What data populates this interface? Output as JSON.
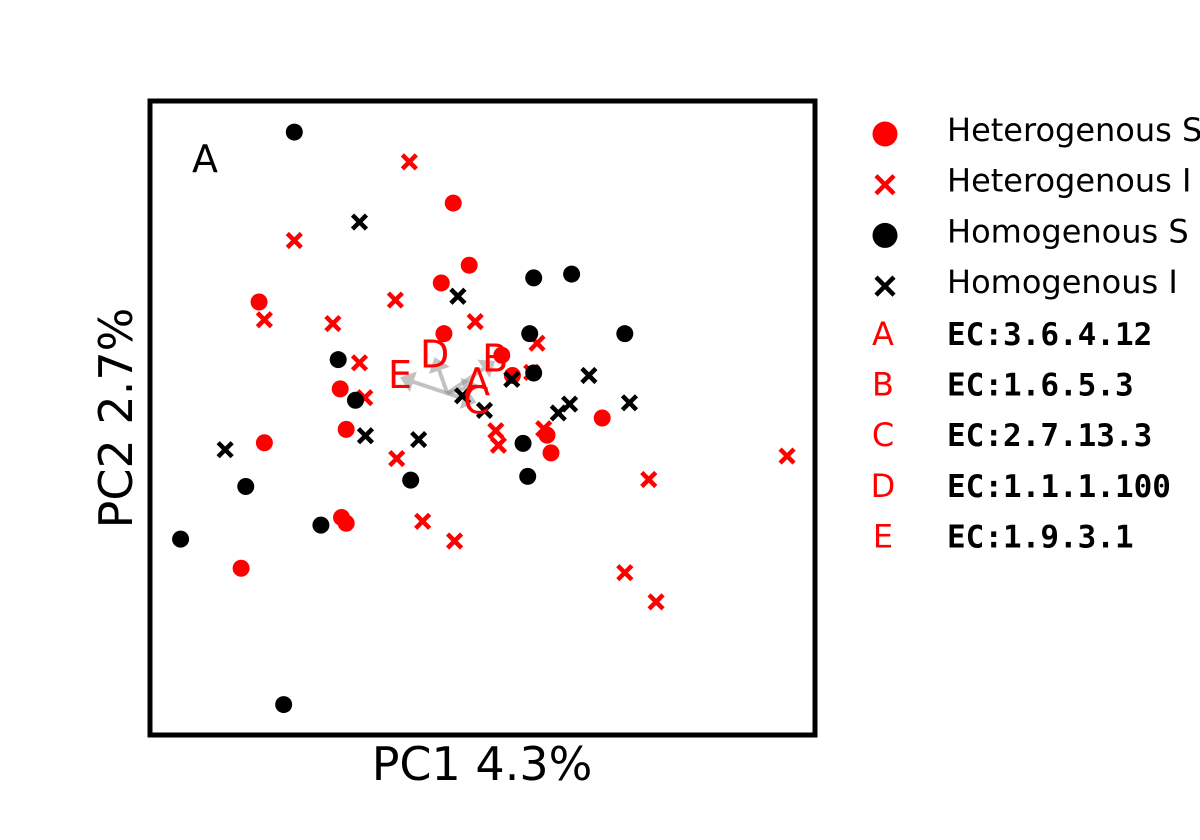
{
  "colors": {
    "heterogenous": "#ff0000",
    "homogenous": "#000000",
    "arrow": "#999999"
  },
  "chart_data": {
    "type": "scatter",
    "panel_label": "A",
    "xlabel": "PC1 4.3%",
    "ylabel": "PC2 2.7%",
    "xlim": [
      0,
      100
    ],
    "ylim": [
      0,
      100
    ],
    "ticks_visible": false,
    "grid": false,
    "legend_position": "outside right",
    "series": [
      {
        "name": "Heterogenous S",
        "marker": "circle",
        "color": "#ff0000",
        "points": [
          [
            45.6,
            83.9
          ],
          [
            48.0,
            74.1
          ],
          [
            43.8,
            71.3
          ],
          [
            16.4,
            68.3
          ],
          [
            44.2,
            63.3
          ],
          [
            52.9,
            59.9
          ],
          [
            54.5,
            56.7
          ],
          [
            28.6,
            54.6
          ],
          [
            68.0,
            50.0
          ],
          [
            17.2,
            46.1
          ],
          [
            29.5,
            48.2
          ],
          [
            59.7,
            47.3
          ],
          [
            60.3,
            44.5
          ],
          [
            28.8,
            34.3
          ],
          [
            29.5,
            33.4
          ],
          [
            13.7,
            26.3
          ]
        ]
      },
      {
        "name": "Heterogenous I",
        "marker": "x",
        "color": "#ff0000",
        "points": [
          [
            39.0,
            90.4
          ],
          [
            21.7,
            78.0
          ],
          [
            36.9,
            68.6
          ],
          [
            17.2,
            65.5
          ],
          [
            27.5,
            64.9
          ],
          [
            48.9,
            65.2
          ],
          [
            58.2,
            61.8
          ],
          [
            31.5,
            58.7
          ],
          [
            57.4,
            57.2
          ],
          [
            32.3,
            53.2
          ],
          [
            52.0,
            48.0
          ],
          [
            59.2,
            48.3
          ],
          [
            52.4,
            45.7
          ],
          [
            37.1,
            43.6
          ],
          [
            75.0,
            40.3
          ],
          [
            95.8,
            44.0
          ],
          [
            41.0,
            33.7
          ],
          [
            45.8,
            30.6
          ],
          [
            71.4,
            25.6
          ],
          [
            76.1,
            21.0
          ]
        ]
      },
      {
        "name": "Homogenous S",
        "marker": "circle",
        "color": "#000000",
        "points": [
          [
            21.7,
            95.1
          ],
          [
            57.7,
            72.1
          ],
          [
            63.4,
            72.7
          ],
          [
            57.1,
            63.3
          ],
          [
            71.4,
            63.3
          ],
          [
            28.3,
            59.2
          ],
          [
            57.7,
            57.1
          ],
          [
            30.9,
            52.8
          ],
          [
            56.1,
            46.0
          ],
          [
            14.4,
            39.2
          ],
          [
            39.2,
            40.2
          ],
          [
            56.8,
            40.8
          ],
          [
            25.7,
            33.1
          ],
          [
            4.6,
            30.9
          ],
          [
            20.1,
            4.8
          ]
        ]
      },
      {
        "name": "Homogenous I",
        "marker": "x",
        "color": "#000000",
        "points": [
          [
            31.5,
            80.9
          ],
          [
            46.3,
            69.2
          ],
          [
            54.4,
            56.1
          ],
          [
            66.0,
            56.7
          ],
          [
            47.0,
            53.5
          ],
          [
            50.3,
            51.2
          ],
          [
            63.1,
            52.2
          ],
          [
            72.1,
            52.4
          ],
          [
            61.4,
            50.8
          ],
          [
            32.4,
            47.2
          ],
          [
            40.4,
            46.6
          ],
          [
            11.3,
            45.0
          ]
        ]
      }
    ],
    "loadings": [
      {
        "label": "A",
        "name": "EC:3.6.4.12",
        "x": 49.2,
        "y": 55.3
      },
      {
        "label": "B",
        "name": "EC:1.6.5.3",
        "x": 51.9,
        "y": 59.0
      },
      {
        "label": "C",
        "name": "EC:2.7.13.3",
        "x": 49.1,
        "y": 52.4
      },
      {
        "label": "D",
        "name": "EC:1.1.1.100",
        "x": 42.8,
        "y": 59.6
      },
      {
        "label": "E",
        "name": "EC:1.9.3.1",
        "x": 37.6,
        "y": 56.4
      }
    ],
    "loading_origin": [
      44.7,
      53.9
    ]
  },
  "legend": {
    "series_labels": [
      "Heterogenous S",
      "Heterogenous I",
      "Homogenous S",
      "Homogenous I"
    ]
  }
}
